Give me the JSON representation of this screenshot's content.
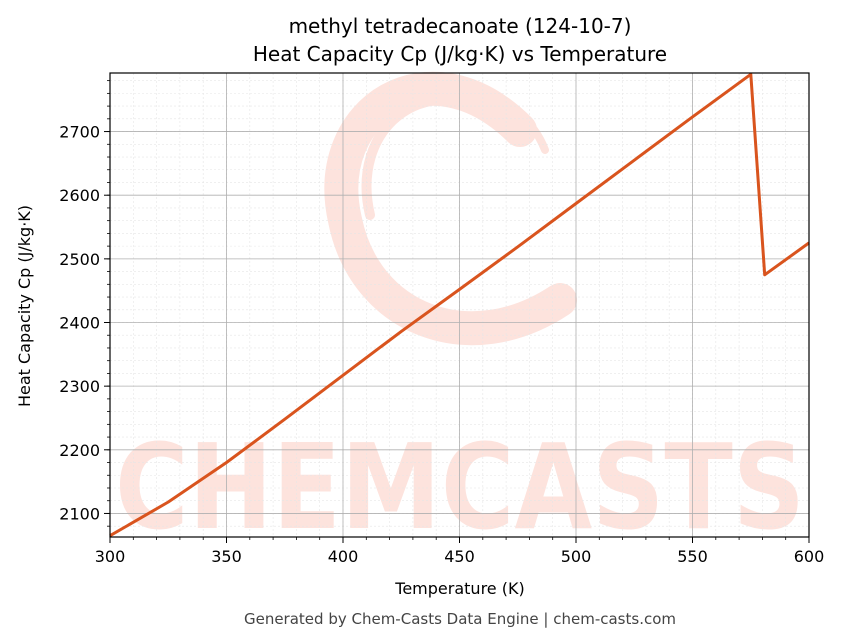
{
  "chart_data": {
    "type": "line",
    "title": "methyl tetradecanoate (124-10-7)",
    "subtitle": "Heat Capacity Cp (J/kg·K) vs Temperature",
    "xlabel": "Temperature (K)",
    "ylabel": "Heat Capacity Cp (J/kg·K)",
    "xlim": [
      300,
      600
    ],
    "ylim": [
      2063,
      2792
    ],
    "x_ticks": [
      300,
      350,
      400,
      450,
      500,
      550,
      600
    ],
    "y_ticks": [
      2100,
      2200,
      2300,
      2400,
      2500,
      2600,
      2700
    ],
    "grid": true,
    "line_color": "#d9541e",
    "series": [
      {
        "x": [
          300,
          325,
          350,
          375,
          400,
          425,
          450,
          475,
          500,
          525,
          550,
          575,
          581,
          600
        ],
        "values": [
          2065,
          2118,
          2180,
          2248,
          2317,
          2386,
          2452,
          2519,
          2587,
          2655,
          2723,
          2790,
          2475,
          2525
        ]
      }
    ],
    "watermark": "CHEMCASTS",
    "watermark_color": "#fde3dd"
  },
  "footer": "Generated by Chem-Casts Data Engine | chem-casts.com"
}
